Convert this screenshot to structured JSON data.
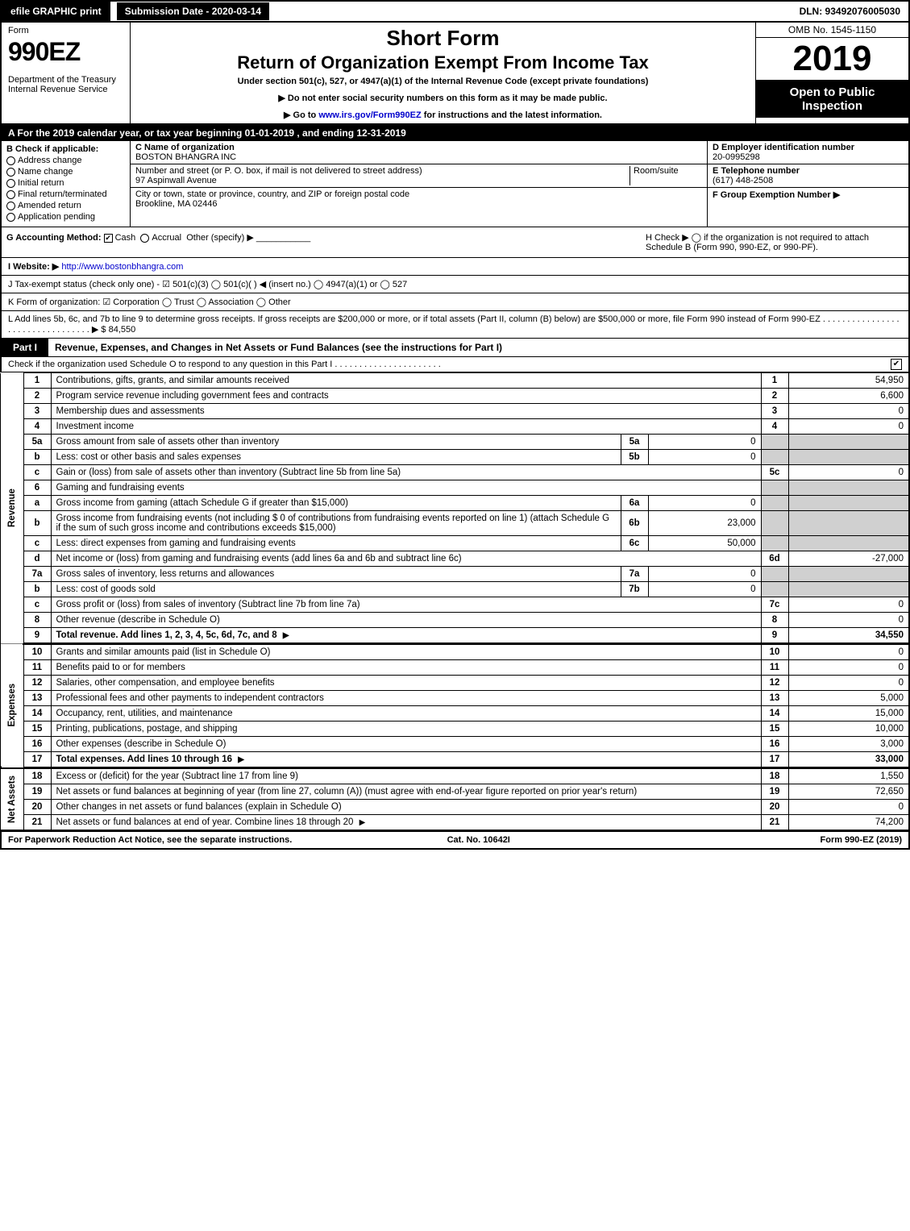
{
  "topbar": {
    "efile": "efile GRAPHIC print",
    "sub_date_label": "Submission Date - 2020-03-14",
    "dln": "DLN: 93492076005030"
  },
  "header": {
    "form_label": "Form",
    "form_num": "990EZ",
    "dept": "Department of the Treasury\nInternal Revenue Service",
    "short_form": "Short Form",
    "return_title": "Return of Organization Exempt From Income Tax",
    "under_sec": "Under section 501(c), 527, or 4947(a)(1) of the Internal Revenue Code (except private foundations)",
    "no_ssn": "▶ Do not enter social security numbers on this form as it may be made public.",
    "goto": "▶ Go to www.irs.gov/Form990EZ for instructions and the latest information.",
    "goto_url": "www.irs.gov/Form990EZ",
    "omb": "OMB No. 1545-1150",
    "year": "2019",
    "open": "Open to Public Inspection"
  },
  "tax_year_bar": "A  For the 2019 calendar year, or tax year beginning 01-01-2019 , and ending 12-31-2019",
  "col_b": {
    "title": "B  Check if applicable:",
    "items": [
      "Address change",
      "Name change",
      "Initial return",
      "Final return/terminated",
      "Amended return",
      "Application pending"
    ]
  },
  "col_c": {
    "name_label": "C Name of organization",
    "name": "BOSTON BHANGRA INC",
    "street_label": "Number and street (or P. O. box, if mail is not delivered to street address)",
    "room_label": "Room/suite",
    "street": "97 Aspinwall Avenue",
    "city_label": "City or town, state or province, country, and ZIP or foreign postal code",
    "city": "Brookline, MA  02446"
  },
  "col_def": {
    "d_label": "D Employer identification number",
    "d_val": "20-0995298",
    "e_label": "E Telephone number",
    "e_val": "(617) 448-2508",
    "f_label": "F Group Exemption Number  ▶"
  },
  "g_line": {
    "label": "G Accounting Method:",
    "cash": "Cash",
    "accrual": "Accrual",
    "other": "Other (specify) ▶"
  },
  "h_line": "H  Check ▶  ◯ if the organization is not required to attach Schedule B (Form 990, 990-EZ, or 990-PF).",
  "i_line": {
    "label": "I Website: ▶",
    "url": "http://www.bostonbhangra.com"
  },
  "j_line": "J Tax-exempt status (check only one) - ☑ 501(c)(3) ◯ 501(c)(  ) ◀ (insert no.) ◯ 4947(a)(1) or ◯ 527",
  "k_line": "K Form of organization:   ☑ Corporation  ◯ Trust  ◯ Association  ◯ Other",
  "l_line": "L Add lines 5b, 6c, and 7b to line 9 to determine gross receipts. If gross receipts are $200,000 or more, or if total assets (Part II, column (B) below) are $500,000 or more, file Form 990 instead of Form 990-EZ . . . . . . . . . . . . . . . . . . . . . . . . . . . . . . . . . ▶ $ 84,550",
  "part1": {
    "tab": "Part I",
    "title": "Revenue, Expenses, and Changes in Net Assets or Fund Balances (see the instructions for Part I)",
    "checkO": "Check if the organization used Schedule O to respond to any question in this Part I . . . . . . . . . . . . . . . . . . . . . .",
    "checkO_checked": true
  },
  "side_labels": {
    "rev": "Revenue",
    "exp": "Expenses",
    "na": "Net Assets"
  },
  "rows": [
    {
      "n": "1",
      "d": "Contributions, gifts, grants, and similar amounts received",
      "num": "1",
      "v": "54,950"
    },
    {
      "n": "2",
      "d": "Program service revenue including government fees and contracts",
      "num": "2",
      "v": "6,600"
    },
    {
      "n": "3",
      "d": "Membership dues and assessments",
      "num": "3",
      "v": "0"
    },
    {
      "n": "4",
      "d": "Investment income",
      "num": "4",
      "v": "0"
    },
    {
      "n": "5a",
      "d": "Gross amount from sale of assets other than inventory",
      "mn": "5a",
      "mv": "0"
    },
    {
      "n": "b",
      "d": "Less: cost or other basis and sales expenses",
      "mn": "5b",
      "mv": "0"
    },
    {
      "n": "c",
      "d": "Gain or (loss) from sale of assets other than inventory (Subtract line 5b from line 5a)",
      "num": "5c",
      "v": "0"
    },
    {
      "n": "6",
      "d": "Gaming and fundraising events"
    },
    {
      "n": "a",
      "d": "Gross income from gaming (attach Schedule G if greater than $15,000)",
      "mn": "6a",
      "mv": "0"
    },
    {
      "n": "b",
      "d": "Gross income from fundraising events (not including $ 0 of contributions from fundraising events reported on line 1) (attach Schedule G if the sum of such gross income and contributions exceeds $15,000)",
      "mn": "6b",
      "mv": "23,000"
    },
    {
      "n": "c",
      "d": "Less: direct expenses from gaming and fundraising events",
      "mn": "6c",
      "mv": "50,000"
    },
    {
      "n": "d",
      "d": "Net income or (loss) from gaming and fundraising events (add lines 6a and 6b and subtract line 6c)",
      "num": "6d",
      "v": "-27,000"
    },
    {
      "n": "7a",
      "d": "Gross sales of inventory, less returns and allowances",
      "mn": "7a",
      "mv": "0"
    },
    {
      "n": "b",
      "d": "Less: cost of goods sold",
      "mn": "7b",
      "mv": "0"
    },
    {
      "n": "c",
      "d": "Gross profit or (loss) from sales of inventory (Subtract line 7b from line 7a)",
      "num": "7c",
      "v": "0"
    },
    {
      "n": "8",
      "d": "Other revenue (describe in Schedule O)",
      "num": "8",
      "v": "0"
    },
    {
      "n": "9",
      "d": "Total revenue. Add lines 1, 2, 3, 4, 5c, 6d, 7c, and 8",
      "num": "9",
      "v": "34,550",
      "bold": true,
      "arrow": true
    }
  ],
  "exp_rows": [
    {
      "n": "10",
      "d": "Grants and similar amounts paid (list in Schedule O)",
      "num": "10",
      "v": "0"
    },
    {
      "n": "11",
      "d": "Benefits paid to or for members",
      "num": "11",
      "v": "0"
    },
    {
      "n": "12",
      "d": "Salaries, other compensation, and employee benefits",
      "num": "12",
      "v": "0"
    },
    {
      "n": "13",
      "d": "Professional fees and other payments to independent contractors",
      "num": "13",
      "v": "5,000"
    },
    {
      "n": "14",
      "d": "Occupancy, rent, utilities, and maintenance",
      "num": "14",
      "v": "15,000"
    },
    {
      "n": "15",
      "d": "Printing, publications, postage, and shipping",
      "num": "15",
      "v": "10,000"
    },
    {
      "n": "16",
      "d": "Other expenses (describe in Schedule O)",
      "num": "16",
      "v": "3,000"
    },
    {
      "n": "17",
      "d": "Total expenses. Add lines 10 through 16",
      "num": "17",
      "v": "33,000",
      "bold": true,
      "arrow": true
    }
  ],
  "na_rows": [
    {
      "n": "18",
      "d": "Excess or (deficit) for the year (Subtract line 17 from line 9)",
      "num": "18",
      "v": "1,550"
    },
    {
      "n": "19",
      "d": "Net assets or fund balances at beginning of year (from line 27, column (A)) (must agree with end-of-year figure reported on prior year's return)",
      "num": "19",
      "v": "72,650"
    },
    {
      "n": "20",
      "d": "Other changes in net assets or fund balances (explain in Schedule O)",
      "num": "20",
      "v": "0"
    },
    {
      "n": "21",
      "d": "Net assets or fund balances at end of year. Combine lines 18 through 20",
      "num": "21",
      "v": "74,200",
      "arrow": true
    }
  ],
  "footer": {
    "left": "For Paperwork Reduction Act Notice, see the separate instructions.",
    "mid": "Cat. No. 10642I",
    "right": "Form 990-EZ (2019)"
  }
}
